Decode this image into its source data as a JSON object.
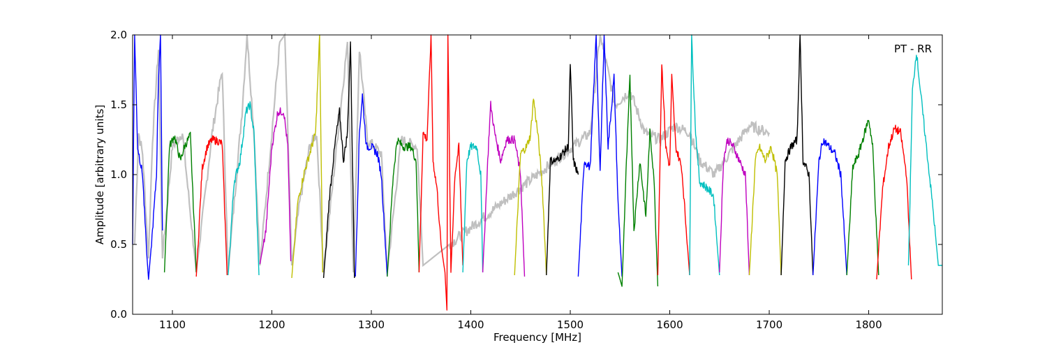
{
  "chart_data": {
    "type": "line",
    "title": "",
    "annotation": "PT - RR",
    "xlabel": "Frequency [MHz]",
    "ylabel": "Amplitude [arbitrary units]",
    "xlim": [
      1060,
      1874
    ],
    "ylim": [
      0.0,
      2.0
    ],
    "x_ticks": [
      1100,
      1200,
      1300,
      1400,
      1500,
      1600,
      1700,
      1800
    ],
    "x_tick_labels": [
      "1100",
      "1200",
      "1300",
      "1400",
      "1500",
      "1600",
      "1700",
      "1800"
    ],
    "y_ticks": [
      0.0,
      0.5,
      1.0,
      1.5,
      2.0
    ],
    "y_tick_labels": [
      "0.0",
      "0.5",
      "1.0",
      "1.5",
      "2.0"
    ],
    "grid": false,
    "background_series": {
      "color": "#c0c0c0",
      "description_points": [
        [
          1062,
          0.5
        ],
        [
          1066,
          1.3
        ],
        [
          1070,
          1.15
        ],
        [
          1076,
          0.4
        ],
        [
          1080,
          1.25
        ],
        [
          1086,
          1.9
        ],
        [
          1090,
          0.4
        ],
        [
          1100,
          1.2
        ],
        [
          1110,
          1.3
        ],
        [
          1124,
          0.3
        ],
        [
          1140,
          1.3
        ],
        [
          1150,
          1.75
        ],
        [
          1156,
          0.3
        ],
        [
          1170,
          1.45
        ],
        [
          1175,
          2.0
        ],
        [
          1182,
          1.3
        ],
        [
          1188,
          0.35
        ],
        [
          1200,
          1.3
        ],
        [
          1208,
          1.95
        ],
        [
          1213,
          2.0
        ],
        [
          1220,
          0.35
        ],
        [
          1228,
          0.8
        ],
        [
          1238,
          1.2
        ],
        [
          1245,
          1.3
        ],
        [
          1252,
          0.3
        ],
        [
          1268,
          1.4
        ],
        [
          1276,
          1.95
        ],
        [
          1282,
          0.3
        ],
        [
          1288,
          1.9
        ],
        [
          1296,
          1.25
        ],
        [
          1310,
          1.15
        ],
        [
          1316,
          0.3
        ],
        [
          1330,
          1.25
        ],
        [
          1346,
          1.2
        ],
        [
          1352,
          0.35
        ],
        [
          1520,
          1.3
        ],
        [
          1530,
          2.0
        ],
        [
          1545,
          1.5
        ],
        [
          1560,
          1.6
        ],
        [
          1575,
          1.3
        ],
        [
          1590,
          1.25
        ],
        [
          1605,
          1.35
        ],
        [
          1620,
          1.3
        ],
        [
          1630,
          1.1
        ],
        [
          1645,
          1.0
        ],
        [
          1680,
          1.35
        ],
        [
          1700,
          1.3
        ]
      ]
    },
    "series": [
      {
        "color": "#0000ff",
        "segment": [
          1060,
          1091
        ],
        "points": [
          [
            1060,
            0.5
          ],
          [
            1062,
            2.0
          ],
          [
            1065,
            1.2
          ],
          [
            1070,
            1.0
          ],
          [
            1074,
            0.45
          ],
          [
            1076,
            0.25
          ],
          [
            1080,
            0.6
          ],
          [
            1084,
            1.0
          ],
          [
            1086,
            1.7
          ],
          [
            1088,
            2.0
          ],
          [
            1090,
            0.6
          ]
        ]
      },
      {
        "color": "#008000",
        "segment": [
          1092,
          1124
        ],
        "points": [
          [
            1092,
            0.3
          ],
          [
            1097,
            1.2
          ],
          [
            1102,
            1.28
          ],
          [
            1108,
            1.1
          ],
          [
            1112,
            1.2
          ],
          [
            1118,
            1.28
          ],
          [
            1124,
            0.3
          ]
        ]
      },
      {
        "color": "#ff0000",
        "segment": [
          1124,
          1155
        ],
        "points": [
          [
            1124,
            0.27
          ],
          [
            1130,
            1.05
          ],
          [
            1135,
            1.2
          ],
          [
            1140,
            1.25
          ],
          [
            1146,
            1.24
          ],
          [
            1150,
            1.22
          ],
          [
            1155,
            0.28
          ]
        ]
      },
      {
        "color": "#00bfbf",
        "segment": [
          1156,
          1187
        ],
        "points": [
          [
            1156,
            0.28
          ],
          [
            1162,
            0.95
          ],
          [
            1168,
            1.1
          ],
          [
            1174,
            1.45
          ],
          [
            1178,
            1.5
          ],
          [
            1182,
            1.3
          ],
          [
            1187,
            0.28
          ]
        ]
      },
      {
        "color": "#bf00bf",
        "segment": [
          1188,
          1219
        ],
        "points": [
          [
            1188,
            0.36
          ],
          [
            1194,
            0.6
          ],
          [
            1200,
            1.2
          ],
          [
            1206,
            1.45
          ],
          [
            1212,
            1.45
          ],
          [
            1216,
            1.2
          ],
          [
            1219,
            0.38
          ]
        ]
      },
      {
        "color": "#bfbf00",
        "segment": [
          1220,
          1251
        ],
        "points": [
          [
            1220,
            0.26
          ],
          [
            1226,
            0.8
          ],
          [
            1232,
            1.0
          ],
          [
            1238,
            1.15
          ],
          [
            1244,
            1.3
          ],
          [
            1248,
            2.0
          ],
          [
            1251,
            0.3
          ]
        ]
      },
      {
        "color": "#000000",
        "segment": [
          1252,
          1283
        ],
        "points": [
          [
            1252,
            0.26
          ],
          [
            1258,
            0.85
          ],
          [
            1264,
            1.25
          ],
          [
            1268,
            1.45
          ],
          [
            1272,
            1.1
          ],
          [
            1276,
            1.3
          ],
          [
            1279,
            1.95
          ],
          [
            1283,
            0.26
          ]
        ]
      },
      {
        "color": "#0000ff",
        "segment": [
          1284,
          1316
        ],
        "points": [
          [
            1284,
            0.27
          ],
          [
            1288,
            1.3
          ],
          [
            1291,
            1.57
          ],
          [
            1295,
            1.2
          ],
          [
            1300,
            1.2
          ],
          [
            1306,
            1.15
          ],
          [
            1310,
            1.0
          ],
          [
            1316,
            0.27
          ]
        ]
      },
      {
        "color": "#008000",
        "segment": [
          1316,
          1348
        ],
        "points": [
          [
            1316,
            0.27
          ],
          [
            1322,
            1.0
          ],
          [
            1326,
            1.25
          ],
          [
            1332,
            1.2
          ],
          [
            1340,
            1.2
          ],
          [
            1345,
            1.1
          ],
          [
            1348,
            0.3
          ]
        ]
      },
      {
        "color": "#ff0000",
        "segment": [
          1348,
          1392
        ],
        "points": [
          [
            1348,
            0.3
          ],
          [
            1352,
            1.3
          ],
          [
            1356,
            1.25
          ],
          [
            1360,
            2.0
          ],
          [
            1362,
            1.1
          ],
          [
            1366,
            0.9
          ],
          [
            1370,
            0.5
          ],
          [
            1374,
            0.3
          ],
          [
            1376,
            0.03
          ],
          [
            1377,
            2.0
          ],
          [
            1380,
            0.3
          ],
          [
            1384,
            1.0
          ],
          [
            1388,
            1.2
          ],
          [
            1392,
            0.35
          ]
        ]
      },
      {
        "color": "#00bfbf",
        "segment": [
          1392,
          1412
        ],
        "points": [
          [
            1392,
            0.3
          ],
          [
            1396,
            1.1
          ],
          [
            1400,
            1.2
          ],
          [
            1406,
            1.2
          ],
          [
            1410,
            1.0
          ],
          [
            1412,
            0.3
          ]
        ]
      },
      {
        "color": "#bf00bf",
        "segment": [
          1412,
          1454
        ],
        "points": [
          [
            1412,
            0.3
          ],
          [
            1418,
            1.25
          ],
          [
            1420,
            1.5
          ],
          [
            1424,
            1.3
          ],
          [
            1430,
            1.1
          ],
          [
            1436,
            1.25
          ],
          [
            1444,
            1.25
          ],
          [
            1450,
            1.0
          ],
          [
            1454,
            0.27
          ]
        ]
      },
      {
        "color": "#bfbf00",
        "segment": [
          1444,
          1476
        ],
        "points": [
          [
            1444,
            0.28
          ],
          [
            1450,
            1.15
          ],
          [
            1456,
            1.2
          ],
          [
            1460,
            1.28
          ],
          [
            1463,
            1.55
          ],
          [
            1468,
            1.25
          ],
          [
            1472,
            0.9
          ],
          [
            1476,
            0.28
          ]
        ]
      },
      {
        "color": "#000000",
        "segment": [
          1476,
          1508
        ],
        "points": [
          [
            1476,
            0.28
          ],
          [
            1480,
            1.1
          ],
          [
            1486,
            1.1
          ],
          [
            1492,
            1.15
          ],
          [
            1498,
            1.2
          ],
          [
            1500,
            1.8
          ],
          [
            1503,
            1.1
          ],
          [
            1508,
            1.0
          ]
        ]
      },
      {
        "color": "#0000ff",
        "segment": [
          1508,
          1552
        ],
        "points": [
          [
            1508,
            0.27
          ],
          [
            1514,
            1.1
          ],
          [
            1520,
            1.05
          ],
          [
            1526,
            2.0
          ],
          [
            1530,
            1.0
          ],
          [
            1534,
            2.0
          ],
          [
            1538,
            1.2
          ],
          [
            1544,
            1.7
          ],
          [
            1548,
            0.8
          ],
          [
            1552,
            0.27
          ]
        ]
      },
      {
        "color": "#008000",
        "segment": [
          1548,
          1588
        ],
        "points": [
          [
            1548,
            0.3
          ],
          [
            1552,
            0.2
          ],
          [
            1556,
            1.0
          ],
          [
            1560,
            1.7
          ],
          [
            1564,
            0.6
          ],
          [
            1570,
            1.1
          ],
          [
            1576,
            0.7
          ],
          [
            1580,
            1.3
          ],
          [
            1584,
            1.0
          ],
          [
            1588,
            0.2
          ]
        ]
      },
      {
        "color": "#ff0000",
        "segment": [
          1588,
          1620
        ],
        "points": [
          [
            1588,
            0.28
          ],
          [
            1592,
            1.8
          ],
          [
            1596,
            1.2
          ],
          [
            1600,
            1.05
          ],
          [
            1602,
            1.7
          ],
          [
            1606,
            1.2
          ],
          [
            1612,
            1.05
          ],
          [
            1620,
            0.28
          ]
        ]
      },
      {
        "color": "#00bfbf",
        "segment": [
          1620,
          1650
        ],
        "points": [
          [
            1620,
            0.28
          ],
          [
            1622,
            2.0
          ],
          [
            1626,
            1.3
          ],
          [
            1630,
            0.95
          ],
          [
            1638,
            0.9
          ],
          [
            1644,
            0.85
          ],
          [
            1650,
            0.28
          ]
        ]
      },
      {
        "color": "#bf00bf",
        "segment": [
          1650,
          1680
        ],
        "points": [
          [
            1650,
            0.3
          ],
          [
            1654,
            1.1
          ],
          [
            1658,
            1.25
          ],
          [
            1664,
            1.2
          ],
          [
            1670,
            1.1
          ],
          [
            1676,
            1.0
          ],
          [
            1680,
            0.28
          ]
        ]
      },
      {
        "color": "#bfbf00",
        "segment": [
          1680,
          1712
        ],
        "points": [
          [
            1680,
            0.28
          ],
          [
            1686,
            1.1
          ],
          [
            1690,
            1.2
          ],
          [
            1696,
            1.1
          ],
          [
            1702,
            1.2
          ],
          [
            1708,
            1.0
          ],
          [
            1712,
            0.28
          ]
        ]
      },
      {
        "color": "#000000",
        "segment": [
          1712,
          1744
        ],
        "points": [
          [
            1712,
            0.28
          ],
          [
            1716,
            1.1
          ],
          [
            1722,
            1.2
          ],
          [
            1728,
            1.25
          ],
          [
            1731,
            2.0
          ],
          [
            1734,
            1.1
          ],
          [
            1740,
            1.0
          ],
          [
            1744,
            0.28
          ]
        ]
      },
      {
        "color": "#0000ff",
        "segment": [
          1744,
          1778
        ],
        "points": [
          [
            1744,
            0.28
          ],
          [
            1750,
            1.1
          ],
          [
            1754,
            1.25
          ],
          [
            1760,
            1.2
          ],
          [
            1766,
            1.15
          ],
          [
            1772,
            1.0
          ],
          [
            1778,
            0.28
          ]
        ]
      },
      {
        "color": "#008000",
        "segment": [
          1778,
          1810
        ],
        "points": [
          [
            1778,
            0.28
          ],
          [
            1784,
            1.05
          ],
          [
            1790,
            1.15
          ],
          [
            1796,
            1.3
          ],
          [
            1800,
            1.4
          ],
          [
            1804,
            1.2
          ],
          [
            1810,
            0.28
          ]
        ]
      },
      {
        "color": "#ff0000",
        "segment": [
          1808,
          1843
        ],
        "points": [
          [
            1808,
            0.25
          ],
          [
            1814,
            0.9
          ],
          [
            1820,
            1.2
          ],
          [
            1826,
            1.33
          ],
          [
            1832,
            1.3
          ],
          [
            1838,
            1.0
          ],
          [
            1843,
            0.25
          ]
        ]
      },
      {
        "color": "#00bfbf",
        "segment": [
          1840,
          1874
        ],
        "points": [
          [
            1840,
            0.35
          ],
          [
            1844,
            1.6
          ],
          [
            1848,
            1.88
          ],
          [
            1852,
            1.6
          ],
          [
            1858,
            1.2
          ],
          [
            1864,
            0.8
          ],
          [
            1870,
            0.35
          ],
          [
            1874,
            0.35
          ]
        ]
      }
    ]
  }
}
